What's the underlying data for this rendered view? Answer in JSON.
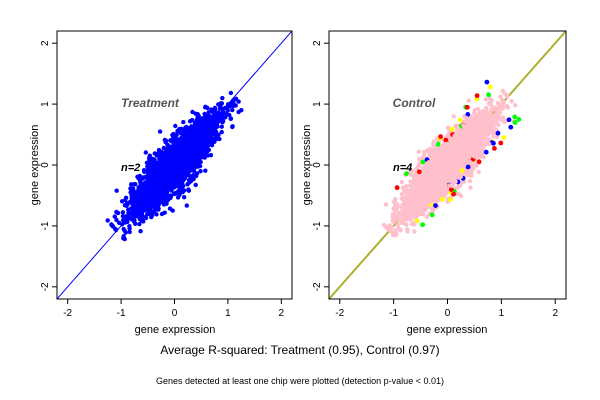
{
  "chart_data": [
    {
      "type": "scatter",
      "title": "Treatment",
      "annotation": "n=2",
      "xlabel": "gene expression",
      "ylabel": "gene expression",
      "xlim": [
        -2.2,
        2.2
      ],
      "ylim": [
        -2.2,
        2.2
      ],
      "xticks": [
        -2,
        -1,
        0,
        1,
        2
      ],
      "yticks": [
        -2,
        -1,
        0,
        1,
        2
      ],
      "grid": false,
      "reference_line": {
        "slope": 1,
        "intercept": 0,
        "color": "#0000ff"
      },
      "series": [
        {
          "color": "#0000ff",
          "x_range": [
            -1.1,
            1.2
          ],
          "y_range": [
            -1.15,
            1.25
          ],
          "note_values": "dense cloud of points along the diagonal"
        }
      ]
    },
    {
      "type": "scatter",
      "title": "Control",
      "annotation": "n=4",
      "xlabel": "gene expression",
      "ylabel": "gene expression",
      "xlim": [
        -2.2,
        2.2
      ],
      "ylim": [
        -2.2,
        2.2
      ],
      "xticks": [
        -2,
        -1,
        0,
        1,
        2
      ],
      "yticks": [
        -2,
        -1,
        0,
        1,
        2
      ],
      "grid": false,
      "reference_lines": [
        {
          "slope": 1,
          "intercept": 0,
          "color": "#90c030"
        },
        {
          "slope": 1,
          "intercept": 0,
          "color": "#c8a030"
        }
      ],
      "series": [
        {
          "color": "#ffc0cb",
          "x_range": [
            -1.1,
            1.2
          ],
          "y_range": [
            -1.15,
            1.2
          ]
        },
        {
          "color": "#00ff00"
        },
        {
          "color": "#ffff00"
        },
        {
          "color": "#0000ff"
        },
        {
          "color": "#ff0000"
        }
      ]
    }
  ],
  "footer": {
    "main": "Average R-squared: Treatment (0.95), Control (0.97)",
    "note": "Genes detected at least one chip were plotted (detection p-value < 0.01)"
  }
}
